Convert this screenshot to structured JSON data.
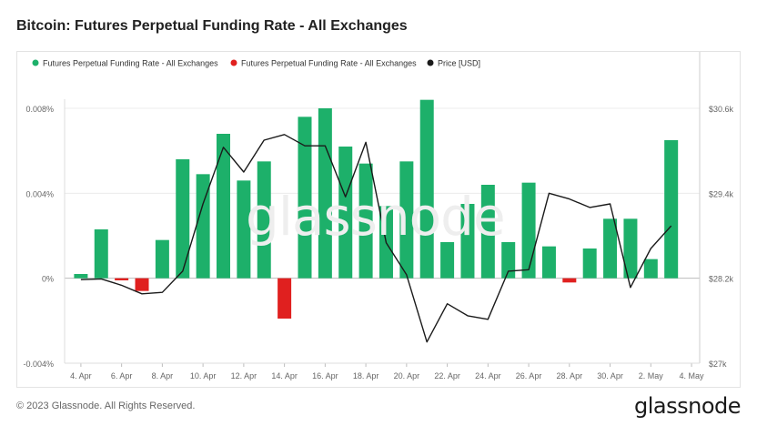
{
  "header": {
    "title": "Bitcoin: Futures Perpetual Funding Rate - All Exchanges"
  },
  "footer": {
    "copyright": "© 2023 Glassnode. All Rights Reserved.",
    "brand": "glassnode"
  },
  "watermark": "glassnode",
  "colors": {
    "positive": "#1db06a",
    "negative": "#e0201f",
    "price": "#1a1a1a",
    "grid": "#ececec",
    "axis_text": "#666666"
  },
  "chart_data": {
    "type": "bar",
    "title": "Bitcoin: Futures Perpetual Funding Rate - All Exchanges",
    "legend_position": "top-left",
    "legend": [
      {
        "label": "Futures Perpetual Funding Rate - All Exchanges",
        "color": "#1db06a",
        "marker": "dot"
      },
      {
        "label": "Futures Perpetual Funding Rate - All Exchanges",
        "color": "#e0201f",
        "marker": "dot"
      },
      {
        "label": "Price [USD]",
        "color": "#1a1a1a",
        "marker": "dot"
      }
    ],
    "x_ticks": [
      "4. Apr",
      "6. Apr",
      "8. Apr",
      "10. Apr",
      "12. Apr",
      "14. Apr",
      "16. Apr",
      "18. Apr",
      "20. Apr",
      "22. Apr",
      "24. Apr",
      "26. Apr",
      "28. Apr",
      "30. Apr",
      "2. May",
      "4. May"
    ],
    "x_tick_days": [
      4,
      6,
      8,
      10,
      12,
      14,
      16,
      18,
      20,
      22,
      24,
      26,
      28,
      30,
      32,
      34
    ],
    "x_range_days": [
      3.2,
      34.4
    ],
    "y_left": {
      "ticks": [
        "0.008%",
        "0.004%",
        "0%",
        "-0.004%"
      ],
      "tick_values": [
        0.008,
        0.004,
        0,
        -0.004
      ],
      "range": [
        -0.004,
        0.008
      ]
    },
    "y_right": {
      "ticks": [
        "$30.6k",
        "$29.4k",
        "$28.2k",
        "$27k"
      ],
      "tick_values": [
        30600,
        29400,
        28200,
        27000
      ],
      "range": [
        27000,
        30600
      ]
    },
    "grid": true,
    "days": [
      4,
      5,
      6,
      7,
      8,
      9,
      10,
      11,
      12,
      13,
      14,
      15,
      16,
      17,
      18,
      19,
      20,
      21,
      22,
      23,
      24,
      25,
      26,
      27,
      28,
      29,
      30,
      31,
      32,
      33
    ],
    "dates": [
      "4. Apr",
      "5. Apr",
      "6. Apr",
      "7. Apr",
      "8. Apr",
      "9. Apr",
      "10. Apr",
      "11. Apr",
      "12. Apr",
      "13. Apr",
      "14. Apr",
      "15. Apr",
      "16. Apr",
      "17. Apr",
      "18. Apr",
      "19. Apr",
      "20. Apr",
      "21. Apr",
      "22. Apr",
      "23. Apr",
      "24. Apr",
      "25. Apr",
      "26. Apr",
      "27. Apr",
      "28. Apr",
      "29. Apr",
      "30. Apr",
      "1. May",
      "2. May",
      "3. May"
    ],
    "series": [
      {
        "name": "Futures Perpetual Funding Rate - All Exchanges",
        "kind": "bar",
        "values": [
          0.0002,
          0.0023,
          -0.0001,
          -0.0006,
          0.0018,
          0.0056,
          0.0049,
          0.0068,
          0.0046,
          0.0055,
          -0.0019,
          0.0076,
          0.008,
          0.0062,
          0.0054,
          0.0034,
          0.0055,
          0.0084,
          0.0017,
          0.0035,
          0.0044,
          0.0017,
          0.0045,
          0.0015,
          -0.0002,
          0.0014,
          0.0028,
          0.0028,
          0.0009,
          0.0065
        ]
      },
      {
        "name": "Price [USD]",
        "kind": "line",
        "axis": "right",
        "values": [
          28180,
          28190,
          28100,
          27980,
          28000,
          28300,
          29250,
          30050,
          29700,
          30150,
          30230,
          30070,
          30070,
          29350,
          30120,
          28700,
          28250,
          27300,
          27840,
          27670,
          27620,
          28300,
          28320,
          29400,
          29320,
          29200,
          29250,
          28070,
          28620,
          28940
        ]
      }
    ]
  }
}
